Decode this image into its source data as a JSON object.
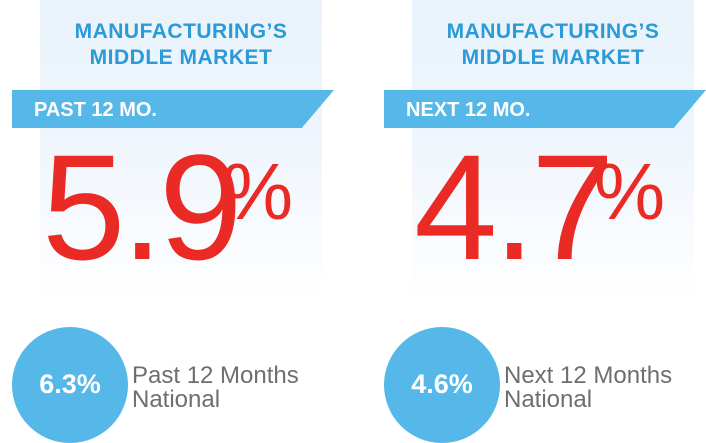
{
  "panels": [
    {
      "heading": [
        "MANUFACTURING’S",
        "MIDDLE MARKET"
      ],
      "banner": "PAST 12 MO.",
      "value": "5.9",
      "unit": "%",
      "national": {
        "value": "6.3%",
        "label": [
          "Past 12 Months",
          "National"
        ]
      }
    },
    {
      "heading": [
        "MANUFACTURING’S",
        "MIDDLE MARKET"
      ],
      "banner": "NEXT 12 MO.",
      "value": "4.7",
      "unit": "%",
      "national": {
        "value": "4.6%",
        "label": [
          "Next 12 Months",
          "National"
        ]
      }
    }
  ]
}
